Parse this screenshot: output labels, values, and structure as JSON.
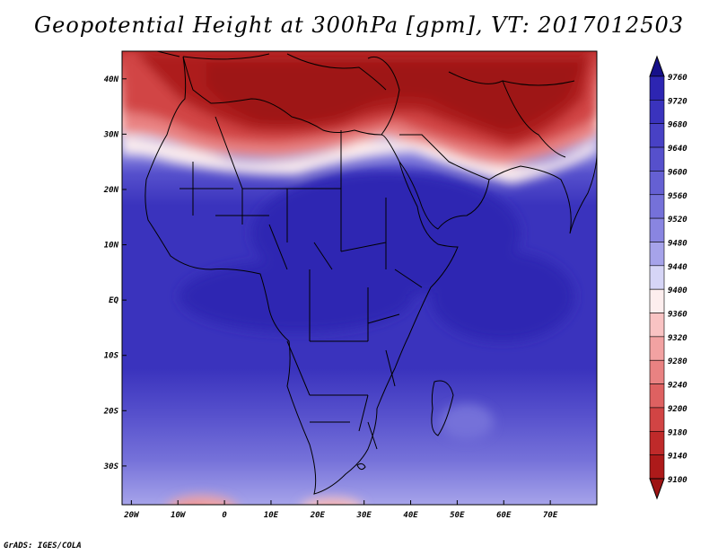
{
  "title": "Geopotential Height at 300hPa [gpm], VT: 2017012503",
  "footer": "GrADS: IGES/COLA",
  "map": {
    "lon_range": [
      -22,
      80
    ],
    "lat_range": [
      -37,
      45
    ],
    "lat_ticks": [
      {
        "value": 40,
        "label": "40N"
      },
      {
        "value": 30,
        "label": "30N"
      },
      {
        "value": 20,
        "label": "20N"
      },
      {
        "value": 10,
        "label": "10N"
      },
      {
        "value": 0,
        "label": "EQ"
      },
      {
        "value": -10,
        "label": "10S"
      },
      {
        "value": -20,
        "label": "20S"
      },
      {
        "value": -30,
        "label": "30S"
      }
    ],
    "lon_ticks": [
      {
        "value": -20,
        "label": "20W"
      },
      {
        "value": -10,
        "label": "10W"
      },
      {
        "value": 0,
        "label": "0"
      },
      {
        "value": 10,
        "label": "10E"
      },
      {
        "value": 20,
        "label": "20E"
      },
      {
        "value": 30,
        "label": "30E"
      },
      {
        "value": 40,
        "label": "40E"
      },
      {
        "value": 50,
        "label": "50E"
      },
      {
        "value": 60,
        "label": "60E"
      },
      {
        "value": 70,
        "label": "70E"
      }
    ]
  },
  "colorbar": {
    "levels": [
      9760,
      9720,
      9680,
      9640,
      9600,
      9560,
      9520,
      9480,
      9440,
      9400,
      9360,
      9320,
      9280,
      9240,
      9200,
      9180,
      9140,
      9100
    ],
    "colors": [
      "#16108a",
      "#2d25b2",
      "#3a33bd",
      "#4841c5",
      "#5650cc",
      "#6560d3",
      "#7571d9",
      "#8985e1",
      "#a6a3ea",
      "#d6d5f6",
      "#fdeeee",
      "#f9c3c3",
      "#f2a2a2",
      "#e98282",
      "#de6161",
      "#d14444",
      "#bf2a2a",
      "#ad1a1a",
      "#9e1414"
    ]
  }
}
